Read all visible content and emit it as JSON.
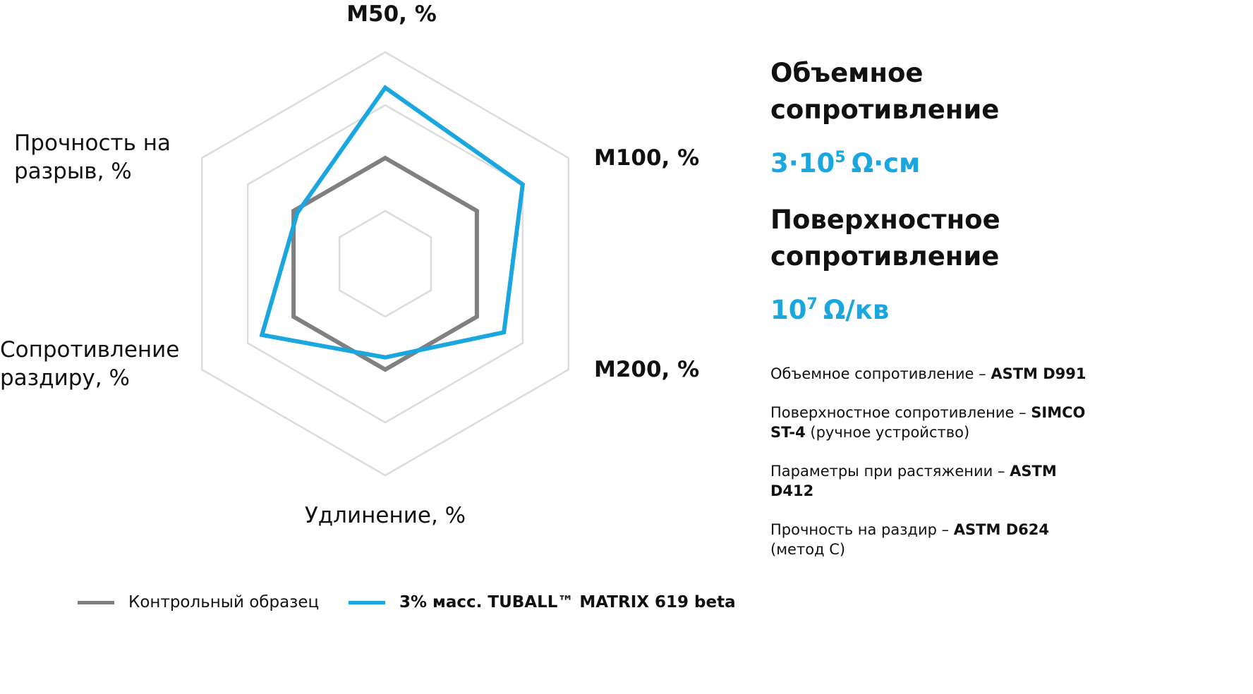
{
  "chart_data": {
    "type": "radar",
    "categories": [
      "M50, %",
      "M100, %",
      "M200, %",
      "Удлинение, %",
      "Сопротивление раздиру, %",
      "Прочность на разрыв, %"
    ],
    "rlim": [
      0,
      4
    ],
    "rticks": [
      1,
      2,
      3,
      4
    ],
    "grid": true,
    "legend": "bottom",
    "series": [
      {
        "name": "Контрольный образец",
        "color": "#808080",
        "values": [
          2,
          2,
          2,
          2,
          2,
          2
        ]
      },
      {
        "name": "3% масс. TUBALL™ MATRIX 619 beta",
        "color": "#1aa7e0",
        "values": [
          3.33,
          3,
          2.59,
          1.77,
          2.69,
          1.92
        ]
      }
    ]
  },
  "side": {
    "blocks": [
      {
        "heading": [
          "Объемное",
          "сопротивление"
        ],
        "value": {
          "base": "3·10",
          "exp": "5",
          "unit": "Ω·см"
        }
      },
      {
        "heading": [
          "Поверхностное",
          "сопротивление"
        ],
        "value": {
          "base": "10",
          "exp": "7",
          "unit": "Ω/кв"
        }
      }
    ],
    "notes": [
      [
        {
          "text": "Объемное сопротивление – ",
          "bold": false
        },
        {
          "text": "ASTM D991",
          "bold": true
        }
      ],
      [
        {
          "text": "Поверхностное сопротивление – ",
          "bold": false
        },
        {
          "text": "SIMCO ST-4",
          "bold": true
        },
        {
          "text": " (ручное устройство)",
          "bold": false
        }
      ],
      [
        {
          "text": "Параметры при растяжении – ",
          "bold": false
        },
        {
          "text": "ASTM D412",
          "bold": true
        }
      ],
      [
        {
          "text": "Прочность на раздир – ",
          "bold": false
        },
        {
          "text": "ASTM D624",
          "bold": true
        },
        {
          "text": " (метод С)",
          "bold": false
        }
      ]
    ],
    "value_color": "#1aa7e0"
  }
}
